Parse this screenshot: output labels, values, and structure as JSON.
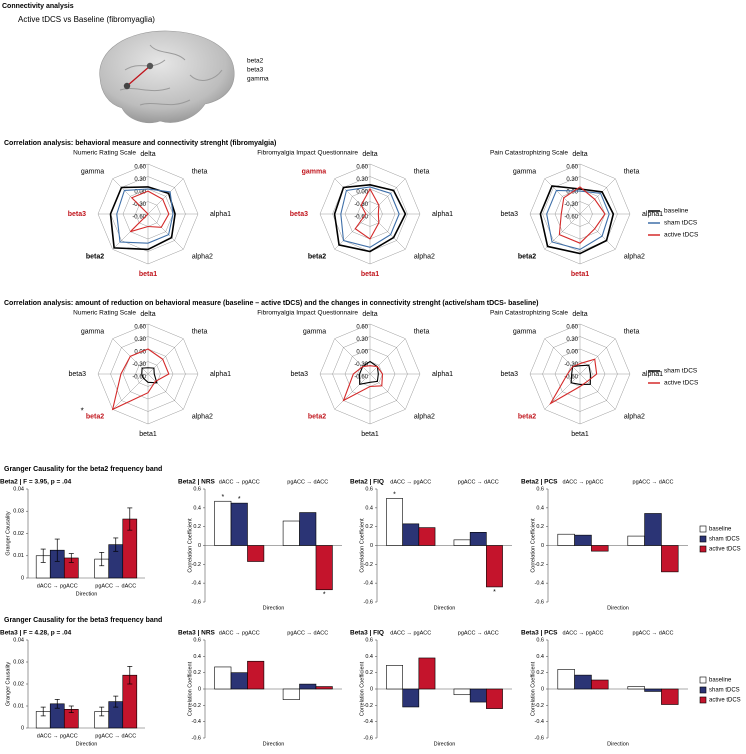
{
  "header": {
    "title": "Connectivity analysis",
    "subtitle": "Active tDCS vs Baseline (fibromyaglia)",
    "bands": [
      "beta2",
      "beta3",
      "gamma"
    ]
  },
  "sections": [
    "Correlation analysis: behavioral measure and connectivity strenght (fibromyalgia)",
    "Correlation analysis: amount of reduction on behavioral measure (baseline – active tDCS) and the changes in connectivity strenght (active/sham tDCS- baseline)",
    "Granger Causality for the beta2 frequency band",
    "Granger Causality for the beta3 frequency band"
  ],
  "chart_data": [
    {
      "type": "radar",
      "title": "Numeric Rating Scale",
      "categories": [
        "delta",
        "theta",
        "alpha1",
        "alpha2",
        "beta1",
        "beta2",
        "beta3",
        "gamma"
      ],
      "label_colors": [
        "#000000",
        "#000000",
        "#000000",
        "#000000",
        "#c0141c",
        "#000000",
        "#c0141c",
        "#000000"
      ],
      "label_weights": [
        "normal",
        "normal",
        "normal",
        "normal",
        "bold",
        "bold",
        "bold",
        "normal"
      ],
      "ylim": [
        -0.6,
        0.6
      ],
      "yticks": [
        {
          "value": -0.6,
          "label": "-0.60"
        },
        {
          "value": -0.3,
          "label": "-0.30"
        },
        {
          "value": 0,
          "label": "0.00"
        },
        {
          "value": 0.3,
          "label": "0.30"
        },
        {
          "value": 0.6,
          "label": "0.60"
        }
      ],
      "series": [
        {
          "name": "baseline",
          "color": "#000000",
          "values": [
            0.05,
            0.1,
            0.05,
            0.2,
            0.25,
            0.55,
            0.3,
            0.3
          ]
        },
        {
          "name": "sham tDCS",
          "color": "#3f6fa8",
          "values": [
            0.0,
            0.15,
            0.0,
            0.1,
            0.1,
            0.35,
            0.15,
            0.2
          ]
        },
        {
          "name": "active tDCS",
          "color": "#d42a2a",
          "values": [
            -0.05,
            -0.1,
            -0.1,
            -0.15,
            -0.3,
            0.0,
            -0.6,
            -0.05
          ]
        }
      ]
    },
    {
      "type": "radar",
      "title": "Fibromyalgia Impact Questionnaire",
      "categories": [
        "delta",
        "theta",
        "alpha1",
        "alpha2",
        "beta1",
        "beta2",
        "beta3",
        "gamma"
      ],
      "label_colors": [
        "#000000",
        "#000000",
        "#000000",
        "#000000",
        "#c0141c",
        "#000000",
        "#c0141c",
        "#c0141c"
      ],
      "label_weights": [
        "normal",
        "normal",
        "normal",
        "normal",
        "bold",
        "bold",
        "bold",
        "bold"
      ],
      "ylim": [
        -0.6,
        0.6
      ],
      "yticks": [
        {
          "value": -0.6,
          "label": "-0.60"
        },
        {
          "value": -0.3,
          "label": "-0.30"
        },
        {
          "value": 0,
          "label": "0.00"
        },
        {
          "value": 0.3,
          "label": "0.30"
        },
        {
          "value": 0.6,
          "label": "0.60"
        }
      ],
      "series": [
        {
          "name": "baseline",
          "color": "#000000",
          "values": [
            0.1,
            0.2,
            0.25,
            0.2,
            0.3,
            0.45,
            0.25,
            0.3
          ]
        },
        {
          "name": "sham tDCS",
          "color": "#3f6fa8",
          "values": [
            0.05,
            0.1,
            0.1,
            0.1,
            0.2,
            0.3,
            0.1,
            0.2
          ]
        },
        {
          "name": "active tDCS",
          "color": "#d42a2a",
          "values": [
            0.0,
            -0.3,
            -0.4,
            -0.3,
            0.0,
            -0.1,
            -0.5,
            -0.3
          ]
        }
      ]
    },
    {
      "type": "radar",
      "title": "Pain Catastrophizing Scale",
      "categories": [
        "delta",
        "theta",
        "alpha1",
        "alpha2",
        "beta1",
        "beta2",
        "beta3",
        "gamma"
      ],
      "label_colors": [
        "#000000",
        "#000000",
        "#000000",
        "#000000",
        "#c0141c",
        "#000000",
        "#000000",
        "#000000"
      ],
      "label_weights": [
        "normal",
        "normal",
        "normal",
        "normal",
        "bold",
        "bold",
        "normal",
        "normal"
      ],
      "ylim": [
        -0.6,
        0.6
      ],
      "yticks": [
        {
          "value": -0.6,
          "label": "-0.60"
        },
        {
          "value": -0.3,
          "label": "-0.30"
        },
        {
          "value": 0,
          "label": "0.00"
        },
        {
          "value": 0.3,
          "label": "0.30"
        },
        {
          "value": 0.6,
          "label": "0.60"
        }
      ],
      "legend": "right",
      "series": [
        {
          "name": "baseline",
          "color": "#000000",
          "values": [
            0.0,
            0.15,
            0.2,
            0.3,
            0.35,
            0.5,
            0.35,
            0.35
          ]
        },
        {
          "name": "sham tDCS",
          "color": "#3f6fa8",
          "values": [
            -0.05,
            0.1,
            0.1,
            0.15,
            0.25,
            0.35,
            0.2,
            0.2
          ]
        },
        {
          "name": "active tDCS",
          "color": "#d42a2a",
          "values": [
            0.05,
            -0.1,
            0.0,
            -0.1,
            0.1,
            0.1,
            -0.15,
            -0.05
          ]
        }
      ]
    },
    {
      "type": "radar",
      "title": "Numeric Rating Scale",
      "categories": [
        "delta",
        "theta",
        "alpha1",
        "alpha2",
        "beta1",
        "beta2",
        "beta3",
        "gamma"
      ],
      "label_colors": [
        "#000000",
        "#000000",
        "#000000",
        "#000000",
        "#000000",
        "#c0141c",
        "#000000",
        "#000000"
      ],
      "label_weights": [
        "normal",
        "normal",
        "normal",
        "normal",
        "normal",
        "bold",
        "normal",
        "normal"
      ],
      "label_notes": [
        null,
        null,
        null,
        null,
        null,
        "*",
        null,
        null
      ],
      "ylim": [
        -0.6,
        0.6
      ],
      "yticks": [
        {
          "value": -0.6,
          "label": "-0.60"
        },
        {
          "value": -0.3,
          "label": "-0.30"
        },
        {
          "value": 0,
          "label": "0.00"
        },
        {
          "value": 0.3,
          "label": "0.30"
        },
        {
          "value": 0.6,
          "label": "0.60"
        }
      ],
      "series": [
        {
          "name": "sham tDCS",
          "color": "#000000",
          "values": [
            -0.45,
            -0.4,
            -0.45,
            -0.3,
            -0.4,
            -0.45,
            -0.45,
            -0.4
          ]
        },
        {
          "name": "active tDCS",
          "color": "#d42a2a",
          "values": [
            0.0,
            -0.1,
            -0.1,
            -0.35,
            -0.15,
            0.6,
            0.05,
            0.0
          ]
        }
      ]
    },
    {
      "type": "radar",
      "title": "Fibromyalgia Impact Questionnaire",
      "categories": [
        "delta",
        "theta",
        "alpha1",
        "alpha2",
        "beta1",
        "beta2",
        "beta3",
        "gamma"
      ],
      "label_colors": [
        "#000000",
        "#000000",
        "#000000",
        "#000000",
        "#000000",
        "#c0141c",
        "#000000",
        "#000000"
      ],
      "label_weights": [
        "normal",
        "normal",
        "normal",
        "normal",
        "normal",
        "bold",
        "normal",
        "normal"
      ],
      "ylim": [
        -0.6,
        0.6
      ],
      "yticks": [
        {
          "value": -0.6,
          "label": "-0.60"
        },
        {
          "value": -0.3,
          "label": "-0.30"
        },
        {
          "value": 0,
          "label": "0.00"
        },
        {
          "value": 0.3,
          "label": "0.30"
        },
        {
          "value": 0.6,
          "label": "0.60"
        }
      ],
      "series": [
        {
          "name": "sham tDCS",
          "color": "#000000",
          "values": [
            -0.3,
            -0.35,
            -0.4,
            -0.35,
            -0.4,
            -0.25,
            -0.35,
            -0.35
          ]
        },
        {
          "name": "active tDCS",
          "color": "#d42a2a",
          "values": [
            -0.4,
            -0.35,
            -0.3,
            -0.2,
            -0.3,
            0.3,
            -0.2,
            -0.35
          ]
        }
      ]
    },
    {
      "type": "radar",
      "title": "Pain Catastrophizing Scale",
      "categories": [
        "delta",
        "theta",
        "alpha1",
        "alpha2",
        "beta1",
        "beta2",
        "beta3",
        "gamma"
      ],
      "label_colors": [
        "#000000",
        "#000000",
        "#000000",
        "#000000",
        "#000000",
        "#c0141c",
        "#000000",
        "#000000"
      ],
      "label_weights": [
        "normal",
        "normal",
        "normal",
        "normal",
        "normal",
        "bold",
        "normal",
        "normal"
      ],
      "ylim": [
        -0.6,
        0.6
      ],
      "yticks": [
        {
          "value": -0.6,
          "label": "-0.60"
        },
        {
          "value": -0.3,
          "label": "-0.30"
        },
        {
          "value": 0,
          "label": "0.00"
        },
        {
          "value": 0.3,
          "label": "0.30"
        },
        {
          "value": 0.6,
          "label": "0.60"
        }
      ],
      "legend": "right",
      "series": [
        {
          "name": "sham tDCS",
          "color": "#000000",
          "values": [
            -0.4,
            -0.3,
            -0.35,
            -0.25,
            -0.35,
            -0.3,
            -0.4,
            -0.35
          ]
        },
        {
          "name": "active tDCS",
          "color": "#d42a2a",
          "values": [
            -0.35,
            -0.1,
            -0.2,
            -0.35,
            -0.3,
            0.4,
            -0.3,
            -0.35
          ]
        }
      ]
    },
    {
      "type": "bar",
      "title": "Beta2 | F = 3.95, p = .04",
      "categories": [
        "dACC → pgACC",
        "pgACC → dACC"
      ],
      "xlabel": "Direction",
      "ylabel": "Granger Causality",
      "ylim": [
        0,
        0.04
      ],
      "yticks": [
        0,
        0.01,
        0.02,
        0.03,
        0.04
      ],
      "series": [
        {
          "name": "baseline",
          "color": "#ffffff",
          "values": [
            0.01,
            0.0085
          ],
          "errors": [
            0.003,
            0.003
          ]
        },
        {
          "name": "sham tDCS",
          "color": "#2b3475",
          "values": [
            0.0125,
            0.015
          ],
          "errors": [
            0.005,
            0.003
          ]
        },
        {
          "name": "active tDCS",
          "color": "#c4142c",
          "values": [
            0.009,
            0.0265
          ],
          "errors": [
            0.002,
            0.005
          ]
        }
      ]
    },
    {
      "type": "bar",
      "title": "Beta2 | NRS",
      "categories": [
        "dACC → pgACC",
        "pgACC → dACC"
      ],
      "xlabel": "Direction",
      "ylabel": "Correlation Coefficient",
      "ylim": [
        -0.6,
        0.6
      ],
      "yticks": [
        -0.6,
        -0.4,
        -0.2,
        0,
        0.2,
        0.4,
        0.6
      ],
      "series": [
        {
          "name": "baseline",
          "color": "#ffffff",
          "values": [
            0.47,
            0.26
          ],
          "annotations": [
            "*",
            null
          ]
        },
        {
          "name": "sham tDCS",
          "color": "#2b3475",
          "values": [
            0.45,
            0.35
          ],
          "annotations": [
            "*",
            null
          ]
        },
        {
          "name": "active tDCS",
          "color": "#c4142c",
          "values": [
            -0.17,
            -0.47
          ],
          "annotations": [
            null,
            "*"
          ]
        }
      ]
    },
    {
      "type": "bar",
      "title": "Beta2 | FIQ",
      "categories": [
        "dACC → pgACC",
        "pgACC → dACC"
      ],
      "xlabel": "Direction",
      "ylabel": "Correlation Coefficient",
      "ylim": [
        -0.6,
        0.6
      ],
      "yticks": [
        -0.6,
        -0.4,
        -0.2,
        0,
        0.2,
        0.4,
        0.6
      ],
      "series": [
        {
          "name": "baseline",
          "color": "#ffffff",
          "values": [
            0.5,
            0.06
          ],
          "annotations": [
            "*",
            null
          ]
        },
        {
          "name": "sham tDCS",
          "color": "#2b3475",
          "values": [
            0.23,
            0.14
          ]
        },
        {
          "name": "active tDCS",
          "color": "#c4142c",
          "values": [
            0.19,
            -0.44
          ],
          "annotations": [
            null,
            "*"
          ]
        }
      ]
    },
    {
      "type": "bar",
      "title": "Beta2 | PCS",
      "categories": [
        "dACC → pgACC",
        "pgACC → dACC"
      ],
      "xlabel": "Direction",
      "ylabel": "Correlation Coefficient",
      "ylim": [
        -0.6,
        0.6
      ],
      "yticks": [
        -0.6,
        -0.4,
        -0.2,
        0,
        0.2,
        0.4,
        0.6
      ],
      "legend": "right",
      "series": [
        {
          "name": "baseline",
          "color": "#ffffff",
          "values": [
            0.12,
            0.1
          ]
        },
        {
          "name": "sham tDCS",
          "color": "#2b3475",
          "values": [
            0.11,
            0.34
          ]
        },
        {
          "name": "active tDCS",
          "color": "#c4142c",
          "values": [
            -0.06,
            -0.28
          ]
        }
      ]
    },
    {
      "type": "bar",
      "title": "Beta3 | F = 4.28, p = .04",
      "categories": [
        "dACC → pgACC",
        "pgACC → dACC"
      ],
      "xlabel": "Direction",
      "ylabel": "Granger Causality",
      "ylim": [
        0,
        0.04
      ],
      "yticks": [
        0,
        0.01,
        0.02,
        0.03,
        0.04
      ],
      "series": [
        {
          "name": "baseline",
          "color": "#ffffff",
          "values": [
            0.0075,
            0.0075
          ],
          "errors": [
            0.002,
            0.002
          ]
        },
        {
          "name": "sham tDCS",
          "color": "#2b3475",
          "values": [
            0.011,
            0.012
          ],
          "errors": [
            0.002,
            0.0025
          ]
        },
        {
          "name": "active tDCS",
          "color": "#c4142c",
          "values": [
            0.0085,
            0.024
          ],
          "errors": [
            0.0015,
            0.004
          ]
        }
      ]
    },
    {
      "type": "bar",
      "title": "Beta3 | NRS",
      "categories": [
        "dACC → pgACC",
        "pgACC → dACC"
      ],
      "xlabel": "Direction",
      "ylabel": "Correlation Coefficient",
      "ylim": [
        -0.6,
        0.6
      ],
      "yticks": [
        -0.6,
        -0.4,
        -0.2,
        0,
        0.2,
        0.4,
        0.6
      ],
      "series": [
        {
          "name": "baseline",
          "color": "#ffffff",
          "values": [
            0.27,
            -0.13
          ]
        },
        {
          "name": "sham tDCS",
          "color": "#2b3475",
          "values": [
            0.2,
            0.06
          ]
        },
        {
          "name": "active tDCS",
          "color": "#c4142c",
          "values": [
            0.34,
            0.03
          ]
        }
      ]
    },
    {
      "type": "bar",
      "title": "Beta3 | FIQ",
      "categories": [
        "dACC → pgACC",
        "pgACC → dACC"
      ],
      "xlabel": "Direction",
      "ylabel": "Correlation Coefficient",
      "ylim": [
        -0.6,
        0.6
      ],
      "yticks": [
        -0.6,
        -0.4,
        -0.2,
        0,
        0.2,
        0.4,
        0.6
      ],
      "series": [
        {
          "name": "baseline",
          "color": "#ffffff",
          "values": [
            0.29,
            -0.07
          ]
        },
        {
          "name": "sham tDCS",
          "color": "#2b3475",
          "values": [
            -0.22,
            -0.16
          ]
        },
        {
          "name": "active tDCS",
          "color": "#c4142c",
          "values": [
            0.38,
            -0.24
          ]
        }
      ]
    },
    {
      "type": "bar",
      "title": "Beta3 | PCS",
      "categories": [
        "dACC → pgACC",
        "pgACC → dACC"
      ],
      "xlabel": "Direction",
      "ylabel": "Correlation Coefficient",
      "ylim": [
        -0.6,
        0.6
      ],
      "yticks": [
        -0.6,
        -0.4,
        -0.2,
        0,
        0.2,
        0.4,
        0.6
      ],
      "legend": "right",
      "series": [
        {
          "name": "baseline",
          "color": "#ffffff",
          "values": [
            0.24,
            0.03
          ]
        },
        {
          "name": "sham tDCS",
          "color": "#2b3475",
          "values": [
            0.17,
            -0.03
          ]
        },
        {
          "name": "active tDCS",
          "color": "#c4142c",
          "values": [
            0.11,
            -0.19
          ]
        }
      ]
    }
  ]
}
